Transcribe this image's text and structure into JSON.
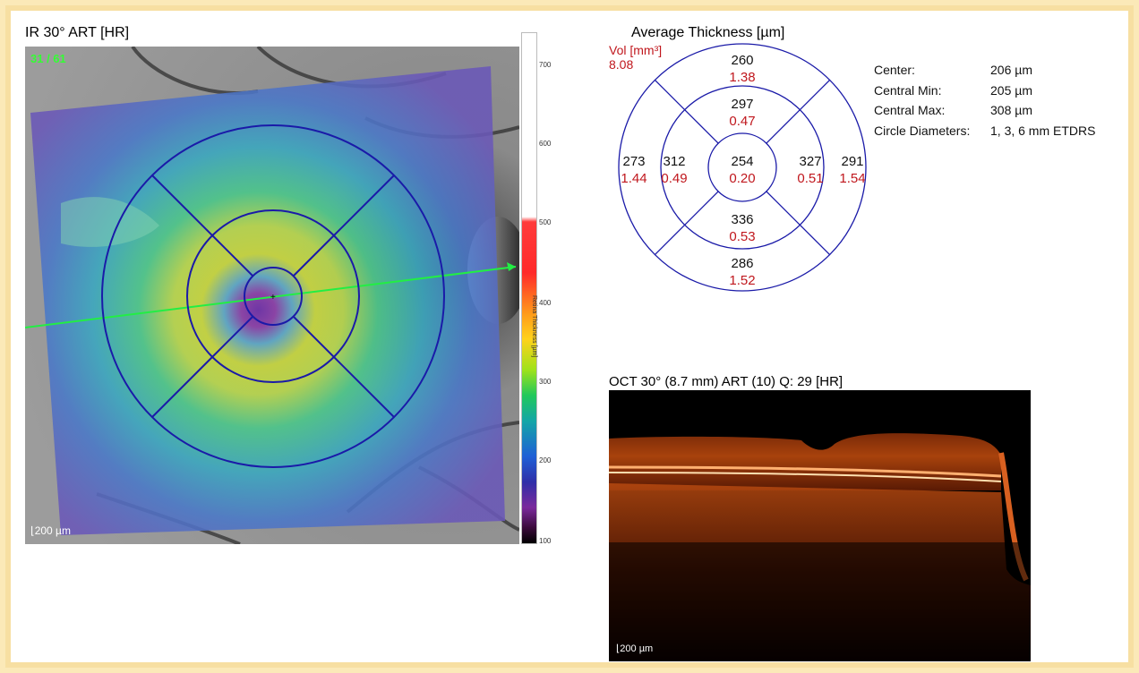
{
  "ir_panel": {
    "title": "IR 30° ART [HR]",
    "frame_counter": "31 / 61",
    "scale_label": "200 µm"
  },
  "colorbar": {
    "title": "Retina Thickness [µm]",
    "ticks": [
      "700",
      "600",
      "500",
      "400",
      "300",
      "200",
      "100"
    ]
  },
  "etdrs": {
    "title": "Average Thickness [µm]",
    "vol_label": "Vol [mm³]",
    "total_volume": "8.08",
    "sectors": {
      "center": {
        "thickness": "254",
        "volume": "0.20"
      },
      "inner_superior": {
        "thickness": "297",
        "volume": "0.47"
      },
      "inner_inferior": {
        "thickness": "336",
        "volume": "0.53"
      },
      "inner_temporal": {
        "thickness": "312",
        "volume": "0.49"
      },
      "inner_nasal": {
        "thickness": "327",
        "volume": "0.51"
      },
      "outer_superior": {
        "thickness": "260",
        "volume": "1.38"
      },
      "outer_inferior": {
        "thickness": "286",
        "volume": "1.52"
      },
      "outer_temporal": {
        "thickness": "273",
        "volume": "1.44"
      },
      "outer_nasal": {
        "thickness": "291",
        "volume": "1.54"
      }
    }
  },
  "stats": {
    "center_label": "Center:",
    "center_value": "206 µm",
    "min_label": "Central Min:",
    "min_value": "205 µm",
    "max_label": "Central Max:",
    "max_value": "308 µm",
    "diam_label": "Circle Diameters:",
    "diam_value": "1, 3, 6 mm ETDRS"
  },
  "oct_panel": {
    "title": "OCT 30° (8.7 mm) ART (10) Q: 29 [HR]",
    "scale_label": "200 µm"
  },
  "colors": {
    "grid_blue": "#1a1aa8",
    "volume_red": "#c0171d",
    "scan_line_green": "#22ee44"
  }
}
